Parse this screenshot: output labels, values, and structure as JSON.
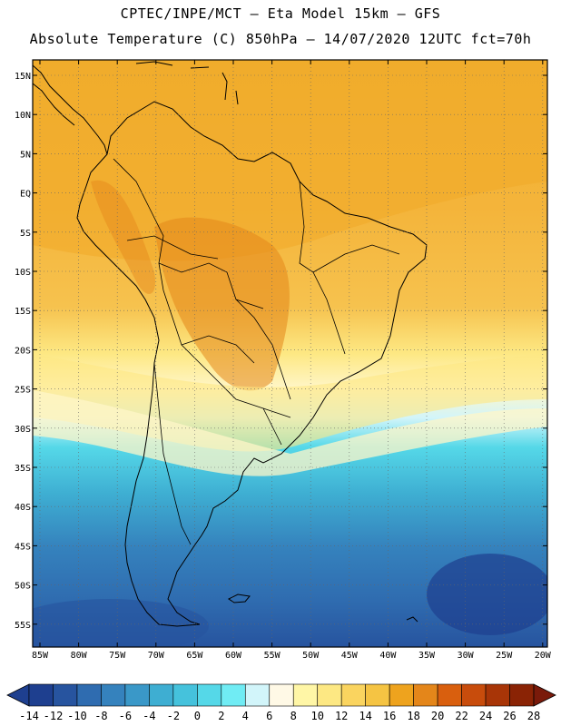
{
  "header": {
    "title_line1": "CPTEC/INPE/MCT –  Eta Model 15km – GFS",
    "title_line2": "Absolute Temperature (C) 850hPa – 14/07/2020 12UTC fct=70h"
  },
  "map": {
    "lat_ticks": [
      "15N",
      "10N",
      "5N",
      "EQ",
      "5S",
      "10S",
      "15S",
      "20S",
      "25S",
      "30S",
      "35S",
      "40S",
      "45S",
      "50S",
      "55S"
    ],
    "lon_ticks": [
      "85W",
      "80W",
      "75W",
      "70W",
      "65W",
      "60W",
      "55W",
      "50W",
      "45W",
      "40W",
      "35W",
      "30W",
      "25W",
      "20W"
    ],
    "lat_range_deg": [
      16.5,
      -57.0
    ],
    "lon_range_deg": [
      -87.0,
      -20.0
    ],
    "field": "temperature_850hPa_celsius"
  },
  "colorbar": {
    "labels": [
      "-14",
      "-12",
      "-10",
      "-8",
      "-6",
      "-4",
      "-2",
      "0",
      "2",
      "4",
      "6",
      "8",
      "10",
      "12",
      "14",
      "16",
      "18",
      "20",
      "22",
      "24",
      "26",
      "28"
    ],
    "colors": [
      "#1e3f8f",
      "#27549f",
      "#2f6cb0",
      "#3582bd",
      "#3a98c8",
      "#3eaed2",
      "#45c2dc",
      "#55d8e8",
      "#70ecf4",
      "#d2f5fa",
      "#fff9e6",
      "#fff6a6",
      "#fde883",
      "#fad45f",
      "#f5c443",
      "#eea31e",
      "#e4861a",
      "#d95f0e",
      "#c84c0c",
      "#a83507",
      "#8a2305"
    ]
  }
}
